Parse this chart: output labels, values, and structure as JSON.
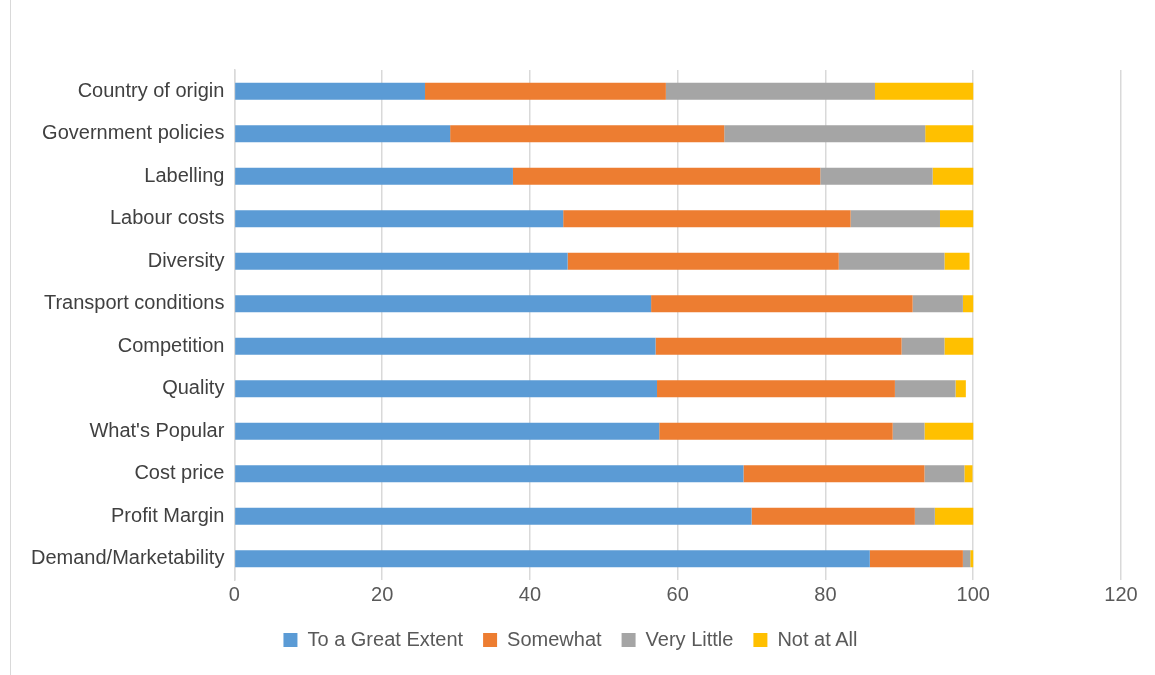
{
  "chart_data": {
    "type": "bar",
    "orientation": "horizontal",
    "stacked": true,
    "categories": [
      "Country of origin",
      "Government policies",
      "Labelling",
      "Labour costs",
      "Diversity",
      "Transport conditions",
      "Competition",
      "Quality",
      "What's Popular",
      "Cost price",
      "Profit Margin",
      "Demand/Marketability"
    ],
    "series": [
      {
        "name": "To a Great Extent",
        "color": "#5b9bd5",
        "values": [
          25.8,
          29.2,
          37.7,
          44.5,
          45.1,
          56.4,
          57.0,
          57.2,
          57.5,
          68.9,
          70.0,
          86.0
        ]
      },
      {
        "name": "Somewhat",
        "color": "#ed7d31",
        "values": [
          32.6,
          37.1,
          41.6,
          38.9,
          36.7,
          35.4,
          33.3,
          32.2,
          31.6,
          24.5,
          22.1,
          12.6
        ]
      },
      {
        "name": "Very Little",
        "color": "#a5a5a5",
        "values": [
          28.3,
          27.2,
          15.2,
          12.1,
          14.3,
          6.8,
          5.8,
          8.2,
          4.3,
          5.4,
          2.7,
          1.0
        ]
      },
      {
        "name": "Not at All",
        "color": "#ffc000",
        "values": [
          13.3,
          6.5,
          5.5,
          4.5,
          3.4,
          1.4,
          3.9,
          1.4,
          6.6,
          1.1,
          5.2,
          0.4
        ]
      }
    ],
    "xlim": [
      0,
      120
    ],
    "xticks": [
      0,
      20,
      40,
      60,
      80,
      100,
      120
    ],
    "grid": "x",
    "legend": "bottom"
  }
}
